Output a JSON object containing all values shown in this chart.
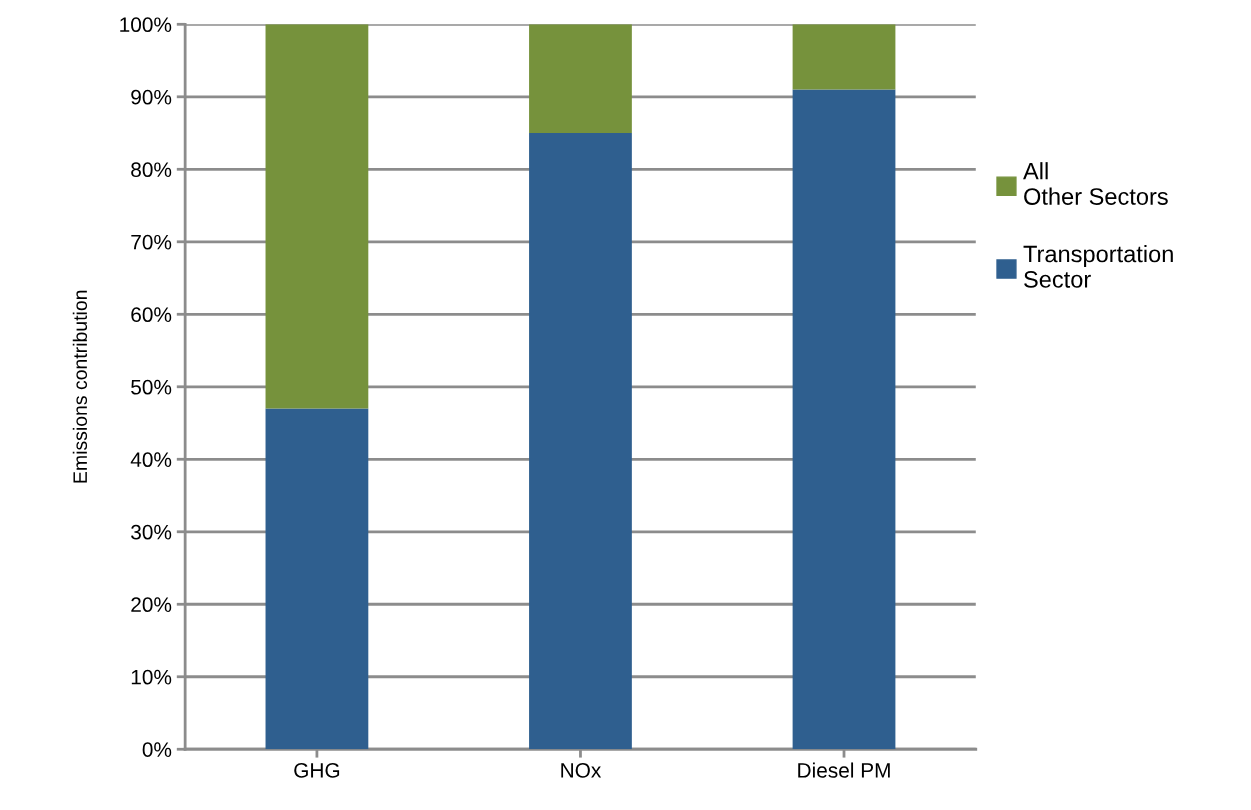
{
  "chart_data": {
    "type": "bar",
    "stacked": true,
    "ylabel": "Emissions contribution",
    "categories": [
      "GHG",
      "NOx",
      "Diesel PM"
    ],
    "series": [
      {
        "name": "Transportation Sector",
        "color": "#2f5f8f",
        "values": [
          47,
          85,
          91
        ]
      },
      {
        "name": "All Other Sectors",
        "color": "#76923c",
        "values": [
          53,
          15,
          9
        ]
      }
    ],
    "ylim": [
      0,
      100
    ],
    "yticks": [
      {
        "value": 0,
        "label": "0%"
      },
      {
        "value": 10,
        "label": "10%"
      },
      {
        "value": 20,
        "label": "20%"
      },
      {
        "value": 30,
        "label": "30%"
      },
      {
        "value": 40,
        "label": "40%"
      },
      {
        "value": 50,
        "label": "50%"
      },
      {
        "value": 60,
        "label": "60%"
      },
      {
        "value": 70,
        "label": "70%"
      },
      {
        "value": 80,
        "label": "80%"
      },
      {
        "value": 90,
        "label": "90%"
      },
      {
        "value": 100,
        "label": "100%"
      }
    ],
    "grid": "y",
    "legend": "right"
  }
}
